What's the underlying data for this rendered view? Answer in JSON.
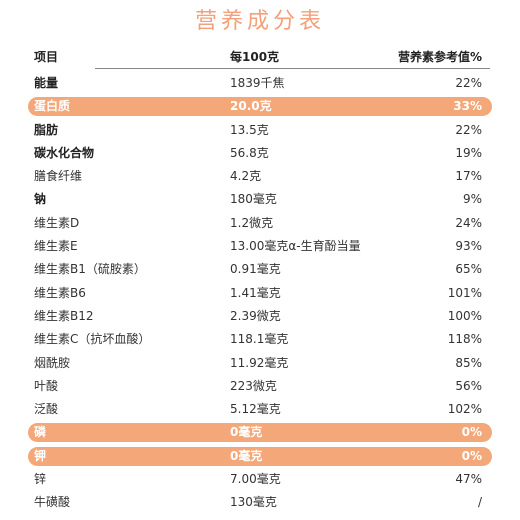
{
  "title": "营养成分表",
  "header": {
    "name": "项目",
    "amount": "每100克",
    "pct": "营养素参考值%"
  },
  "rows": [
    {
      "name": "能量",
      "amount": "1839千焦",
      "pct": "22%"
    },
    {
      "name": "蛋白质",
      "amount": "20.0克",
      "pct": "33%"
    },
    {
      "name": "脂肪",
      "amount": "13.5克",
      "pct": "22%"
    },
    {
      "name": "碳水化合物",
      "amount": "56.8克",
      "pct": "19%"
    },
    {
      "name": "膳食纤维",
      "amount": "4.2克",
      "pct": "17%"
    },
    {
      "name": "钠",
      "amount": "180毫克",
      "pct": "9%"
    },
    {
      "name": "维生素D",
      "amount": "1.2微克",
      "pct": "24%"
    },
    {
      "name": "维生素E",
      "amount": "13.00毫克α-生育酚当量",
      "pct": "93%"
    },
    {
      "name": "维生素B1（硫胺素）",
      "amount": "0.91毫克",
      "pct": "65%"
    },
    {
      "name": "维生素B6",
      "amount": "1.41毫克",
      "pct": "101%"
    },
    {
      "name": "维生素B12",
      "amount": "2.39微克",
      "pct": "100%"
    },
    {
      "name": "维生素C（抗坏血酸）",
      "amount": "118.1毫克",
      "pct": "118%"
    },
    {
      "name": "烟酰胺",
      "amount": "11.92毫克",
      "pct": "85%"
    },
    {
      "name": "叶酸",
      "amount": "223微克",
      "pct": "56%"
    },
    {
      "name": "泛酸",
      "amount": "5.12毫克",
      "pct": "102%"
    },
    {
      "name": "磷",
      "amount": "0毫克",
      "pct": "0%"
    },
    {
      "name": "钾",
      "amount": "0毫克",
      "pct": "0%"
    },
    {
      "name": "锌",
      "amount": "7.00毫克",
      "pct": "47%"
    },
    {
      "name": "牛磺酸",
      "amount": "130毫克",
      "pct": "/"
    }
  ],
  "colors": {
    "accent": "#f4a778",
    "title": "#f4a07a"
  }
}
